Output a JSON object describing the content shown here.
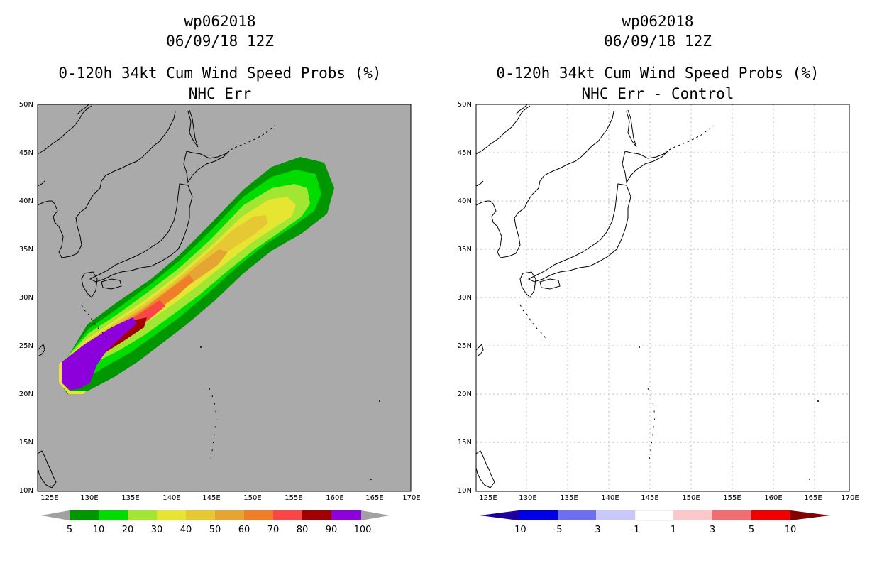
{
  "left_panel": {
    "storm_id": "wp062018",
    "datetime": "06/09/18 12Z",
    "product": "0-120h 34kt Cum Wind Speed Probs (%)",
    "subtitle": "NHC Err",
    "lat_labels": [
      "50N",
      "45N",
      "40N",
      "35N",
      "30N",
      "25N",
      "20N",
      "15N",
      "10N"
    ],
    "lon_labels": [
      "125E",
      "130E",
      "135E",
      "140E",
      "145E",
      "150E",
      "155E",
      "160E",
      "165E",
      "170E"
    ],
    "colorbar": {
      "labels": [
        "5",
        "10",
        "20",
        "30",
        "40",
        "50",
        "60",
        "70",
        "80",
        "90",
        "100"
      ],
      "colors": [
        "#a0a0a0",
        "#009600",
        "#00dc00",
        "#a0e632",
        "#e6e632",
        "#e6c832",
        "#e6a532",
        "#f07d28",
        "#fa4646",
        "#a00000",
        "#8c00dc",
        "#a0a0a0"
      ]
    }
  },
  "right_panel": {
    "storm_id": "wp062018",
    "datetime": "06/09/18 12Z",
    "product": "0-120h 34kt Cum Wind Speed Probs (%)",
    "subtitle": "NHC Err - Control",
    "lat_labels": [
      "50N",
      "45N",
      "40N",
      "35N",
      "30N",
      "25N",
      "20N",
      "15N",
      "10N"
    ],
    "lon_labels": [
      "125E",
      "130E",
      "135E",
      "140E",
      "145E",
      "150E",
      "155E",
      "160E",
      "165E",
      "170E"
    ],
    "colorbar": {
      "labels": [
        "-10",
        "-5",
        "-3",
        "-1",
        "1",
        "3",
        "5",
        "10"
      ],
      "colors": [
        "#1e00a0",
        "#0000e6",
        "#6e6ef0",
        "#c8c8fa",
        "#ffffff",
        "#fac8c8",
        "#f06e6e",
        "#f00000",
        "#820000"
      ]
    }
  },
  "colors": {
    "map_background_left": "#aaaaaa",
    "map_background_right": "#ffffff",
    "coastline": "#000000",
    "grid": "#bbbbbb"
  }
}
